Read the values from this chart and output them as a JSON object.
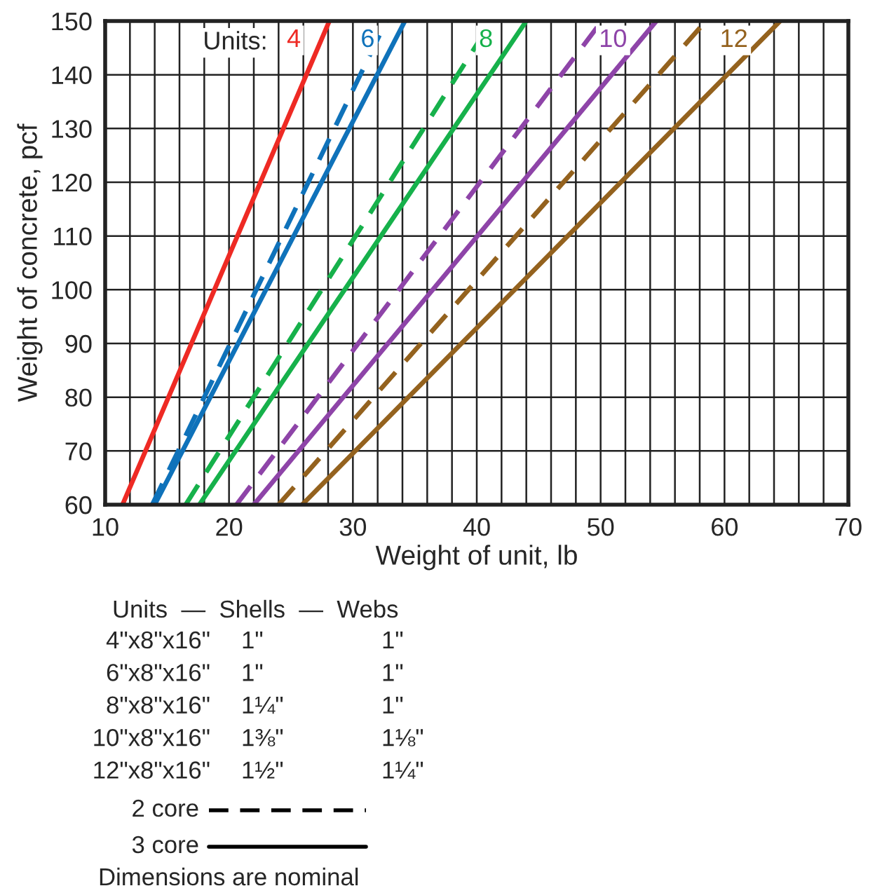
{
  "chart_data": {
    "type": "line",
    "xlabel": "Weight of unit, lb",
    "ylabel": "Weight of concrete, pcf",
    "series": [
      {
        "color": "#ee2a24",
        "line_style": "solid",
        "name": "4",
        "x": [
          11.4,
          28.1
        ],
        "values": [
          60,
          150
        ]
      },
      {
        "color": "#0f72ba",
        "line_style": "dashed",
        "x": [
          13.8,
          32.7
        ],
        "values": [
          60,
          150
        ]
      },
      {
        "color": "#0f72ba",
        "line_style": "solid",
        "name": "6",
        "x": [
          14.0,
          34.2
        ],
        "values": [
          60,
          150
        ]
      },
      {
        "color": "#16b14b",
        "line_style": "dashed",
        "x": [
          16.5,
          41.2
        ],
        "values": [
          60,
          150
        ]
      },
      {
        "color": "#16b14b",
        "line_style": "solid",
        "name": "8",
        "x": [
          17.6,
          44.0
        ],
        "values": [
          60,
          150
        ]
      },
      {
        "color": "#8e44a8",
        "line_style": "dashed",
        "x": [
          20.6,
          50.1
        ],
        "values": [
          60,
          150
        ]
      },
      {
        "color": "#8e44a8",
        "line_style": "solid",
        "name": "10",
        "x": [
          22.0,
          54.5
        ],
        "values": [
          60,
          150
        ]
      },
      {
        "color": "#94621e",
        "line_style": "dashed",
        "x": [
          24.0,
          58.5
        ],
        "values": [
          60,
          150
        ]
      },
      {
        "color": "#94621e",
        "line_style": "solid",
        "name": "12",
        "x": [
          25.9,
          64.5
        ],
        "values": [
          60,
          150
        ]
      }
    ],
    "xlim": [
      10,
      70
    ],
    "ylim": [
      60,
      150
    ],
    "xticks": [
      10,
      {
        "value": 12,
        "label": null
      },
      {
        "value": 14,
        "label": null
      },
      {
        "value": 16,
        "label": null
      },
      {
        "value": 18,
        "label": null
      },
      20,
      {
        "value": 22,
        "label": null
      },
      {
        "value": 24,
        "label": null
      },
      {
        "value": 26,
        "label": null
      },
      {
        "value": 28,
        "label": null
      },
      30,
      {
        "value": 32,
        "label": null
      },
      {
        "value": 34,
        "label": null
      },
      {
        "value": 36,
        "label": null
      },
      {
        "value": 38,
        "label": null
      },
      40,
      {
        "value": 42,
        "label": null
      },
      {
        "value": 44,
        "label": null
      },
      {
        "value": 46,
        "label": null
      },
      {
        "value": 48,
        "label": null
      },
      50,
      {
        "value": 52,
        "label": null
      },
      {
        "value": 54,
        "label": null
      },
      {
        "value": 56,
        "label": null
      },
      {
        "value": 58,
        "label": null
      },
      60,
      {
        "value": 62,
        "label": null
      },
      {
        "value": 64,
        "label": null
      },
      {
        "value": 66,
        "label": null
      },
      {
        "value": 68,
        "label": null
      },
      70
    ],
    "yticks": [
      60,
      70,
      80,
      90,
      100,
      110,
      120,
      130,
      140,
      150
    ],
    "grid": true,
    "legend": false,
    "annotations": [
      "Units:",
      "Units  —  Shells  —  Webs",
      "4\"x8\"x16\"",
      "1\"",
      "1\"",
      "6\"x8\"x16\"",
      "1\"",
      "1\"",
      "8\"x8\"x16\"",
      "1¼\"",
      "1\"",
      "10\"x8\"x16\"",
      "1⅜\"",
      "1⅛\"",
      "12\"x8\"x16\"",
      "1½\"",
      "1¼\"",
      "2 core",
      "3 core",
      "Dimensions are nominal"
    ]
  }
}
